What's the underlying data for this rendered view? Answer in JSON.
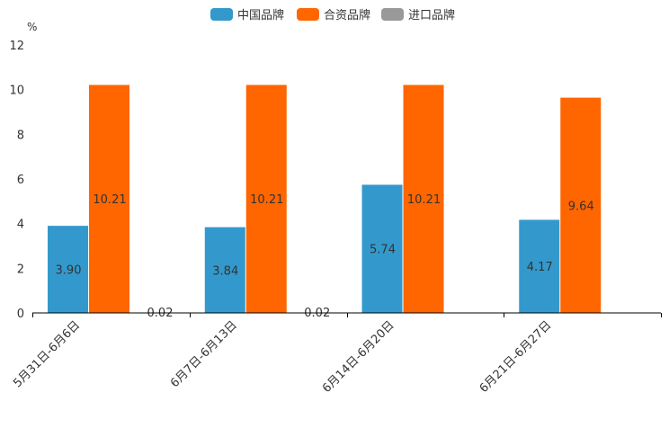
{
  "chart_data": {
    "type": "bar",
    "title": "",
    "xlabel": "",
    "ylabel": "%",
    "ylim": [
      0,
      12
    ],
    "yticks": [
      0,
      2,
      4,
      6,
      8,
      10,
      12
    ],
    "categories": [
      "5月31日-6月6日",
      "6月7日-6月13日",
      "6月14日-6月20日",
      "6月21日-6月27日"
    ],
    "series": [
      {
        "name": "中国品牌",
        "color": "#3399cc",
        "values": [
          3.9,
          3.84,
          5.74,
          4.17
        ],
        "labels": [
          "3.90",
          "3.84",
          "5.74",
          "4.17"
        ]
      },
      {
        "name": "合资品牌",
        "color": "#ff6600",
        "values": [
          10.21,
          10.21,
          10.21,
          9.64
        ],
        "labels": [
          "10.21",
          "10.21",
          "10.21",
          "9.64"
        ]
      },
      {
        "name": "进口品牌",
        "color": "#999999",
        "values": [
          0.02,
          0.02,
          null,
          null
        ],
        "labels": [
          "0.02",
          "0.02",
          null,
          null
        ]
      }
    ],
    "legend": {
      "position": "top-center"
    },
    "grid": false
  }
}
